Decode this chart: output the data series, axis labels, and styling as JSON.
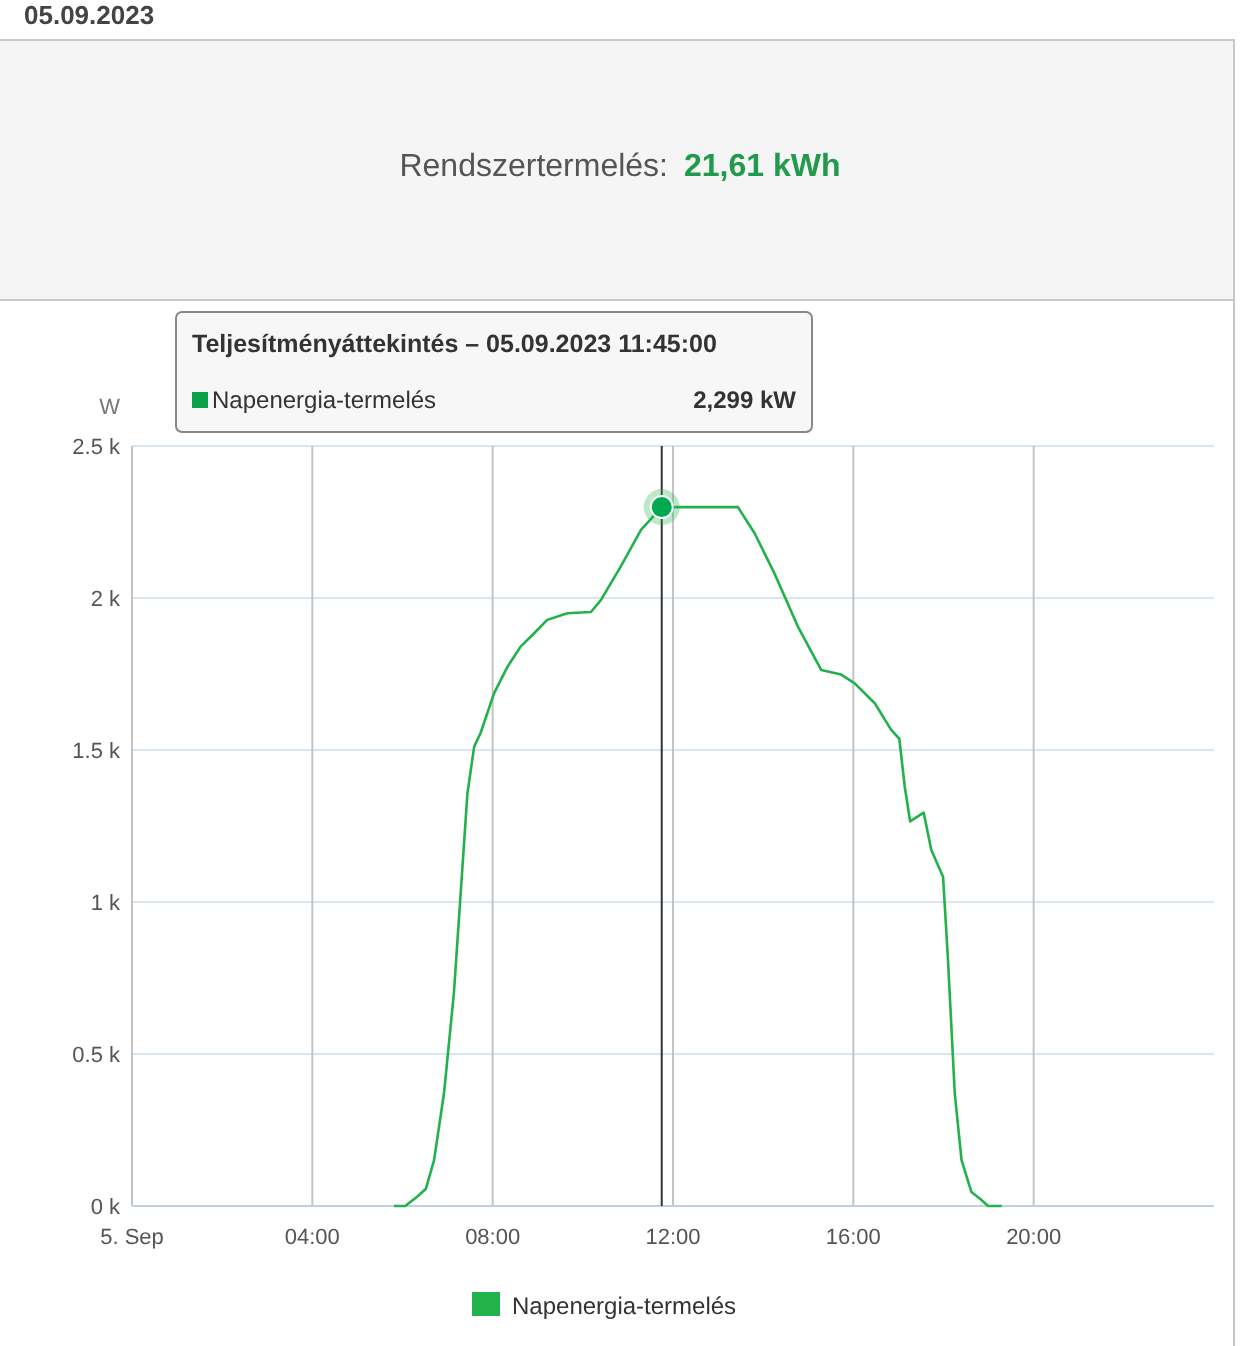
{
  "chart_data": {
    "type": "line",
    "title": "05.09.2023",
    "ylabel": "W",
    "annotations": [
      "Rendszertermelés:",
      "21,61 kWh",
      "Teljesítményáttekintés – 05.09.2023 11:45:00",
      "2,299 kW"
    ],
    "series": [
      {
        "name": "Napenergia-termelés",
        "color": "#21b24b",
        "x": [
          5.81,
          6.06,
          6.33,
          6.52,
          6.7,
          6.92,
          7.14,
          7.29,
          7.44,
          7.59,
          7.73,
          8.03,
          8.33,
          8.62,
          8.92,
          9.21,
          9.66,
          10.18,
          10.4,
          10.84,
          11.29,
          11.75,
          12.18,
          13.44,
          13.81,
          14.25,
          14.77,
          15.29,
          15.73,
          16.03,
          16.48,
          16.84,
          17.02,
          17.14,
          17.26,
          17.56,
          17.73,
          17.99,
          18.1,
          18.25,
          18.4,
          18.62,
          18.81,
          18.99,
          19.29
        ],
        "values": [
          0,
          0,
          31,
          57,
          151,
          370,
          700,
          1028,
          1357,
          1511,
          1555,
          1686,
          1774,
          1840,
          1884,
          1928,
          1950,
          1954,
          1993,
          2103,
          2224,
          2299,
          2299,
          2299,
          2213,
          2081,
          1906,
          1763,
          1748,
          1719,
          1653,
          1566,
          1537,
          1380,
          1265,
          1294,
          1171,
          1083,
          809,
          370,
          151,
          46,
          24,
          0,
          0
        ]
      }
    ],
    "xlim": [
      0,
      24
    ],
    "xticks": [
      {
        "value": 0,
        "label": "5. Sep"
      },
      {
        "value": 4,
        "label": "04:00"
      },
      {
        "value": 8,
        "label": "08:00"
      },
      {
        "value": 12,
        "label": "12:00"
      },
      {
        "value": 16,
        "label": "16:00"
      },
      {
        "value": 20,
        "label": "20:00"
      }
    ],
    "ylim": [
      0,
      2500
    ],
    "yticks": [
      {
        "value": 0,
        "label": "0 k"
      },
      {
        "value": 500,
        "label": "0.5 k"
      },
      {
        "value": 1000,
        "label": "1 k"
      },
      {
        "value": 1500,
        "label": "1.5 k"
      },
      {
        "value": 2000,
        "label": "2 k"
      },
      {
        "value": 2500,
        "label": "2.5 k"
      }
    ],
    "ref_lines": [
      {
        "axis": "x",
        "value": 11.75,
        "color": "#333333"
      }
    ],
    "grid": true,
    "legend": "bottom",
    "marker": "none",
    "line_style": "solid"
  }
}
